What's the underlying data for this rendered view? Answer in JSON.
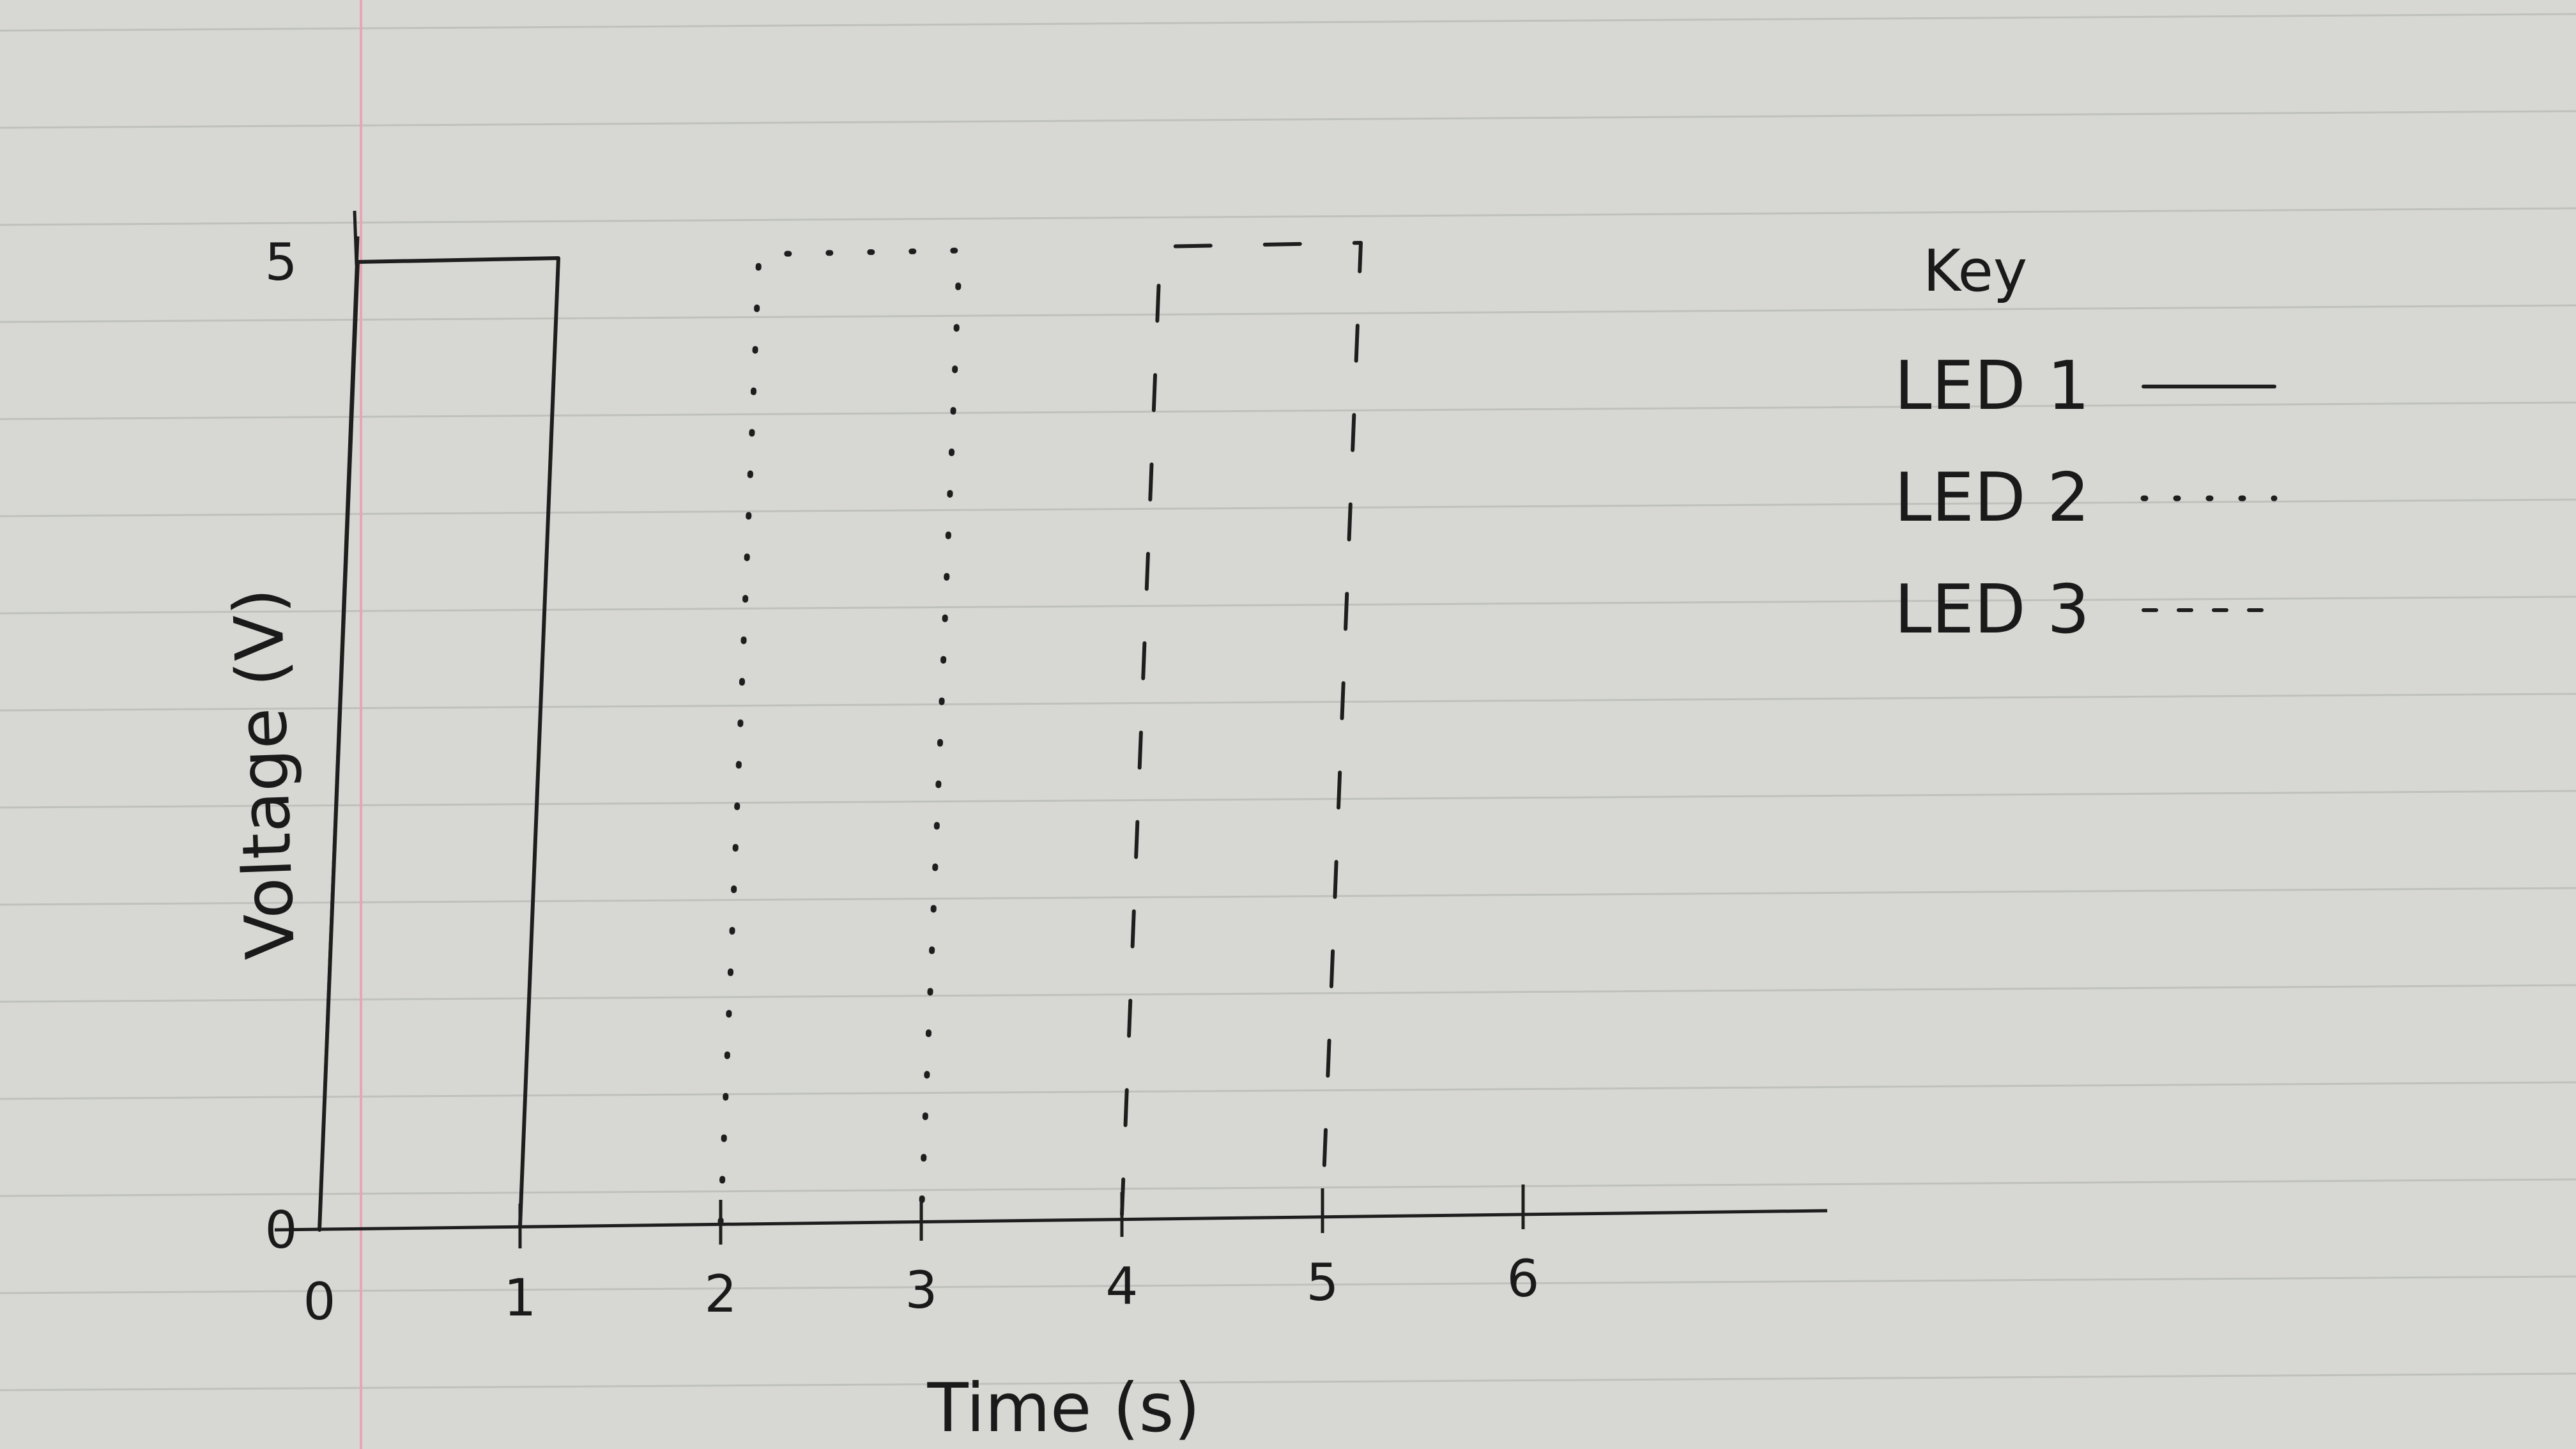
{
  "chart_data": {
    "type": "line",
    "title": "",
    "xlabel": "Time (s)",
    "ylabel": "Voltage (V)",
    "xlim": [
      0,
      7
    ],
    "ylim": [
      0,
      5
    ],
    "x_ticks": [
      0,
      1,
      2,
      3,
      4,
      5,
      6
    ],
    "x_tick_labels": [
      "0",
      "1",
      "2",
      "3",
      "4",
      "5",
      "6"
    ],
    "y_tick_labels": [
      "0",
      "5"
    ],
    "grid": false,
    "legend": {
      "title": "Key",
      "placement": "right",
      "entries": [
        "LED 1",
        "LED 2",
        "LED 3"
      ]
    },
    "series": [
      {
        "name": "LED 1",
        "style": "solid",
        "points": [
          [
            0,
            0
          ],
          [
            0,
            5
          ],
          [
            1,
            5
          ],
          [
            1,
            0
          ]
        ]
      },
      {
        "name": "LED 2",
        "style": "dotted",
        "points": [
          [
            2,
            0
          ],
          [
            2,
            5
          ],
          [
            3,
            5
          ],
          [
            3,
            0
          ]
        ]
      },
      {
        "name": "LED 3",
        "style": "dashed",
        "points": [
          [
            4,
            0
          ],
          [
            4,
            5
          ],
          [
            5,
            5
          ],
          [
            5,
            0
          ]
        ]
      }
    ]
  },
  "colors": {
    "paper": "#d7d8d3",
    "rule_line": "#bfc1bd",
    "margin_line": "#e7a6b4",
    "ink": "#1e1e1e"
  }
}
